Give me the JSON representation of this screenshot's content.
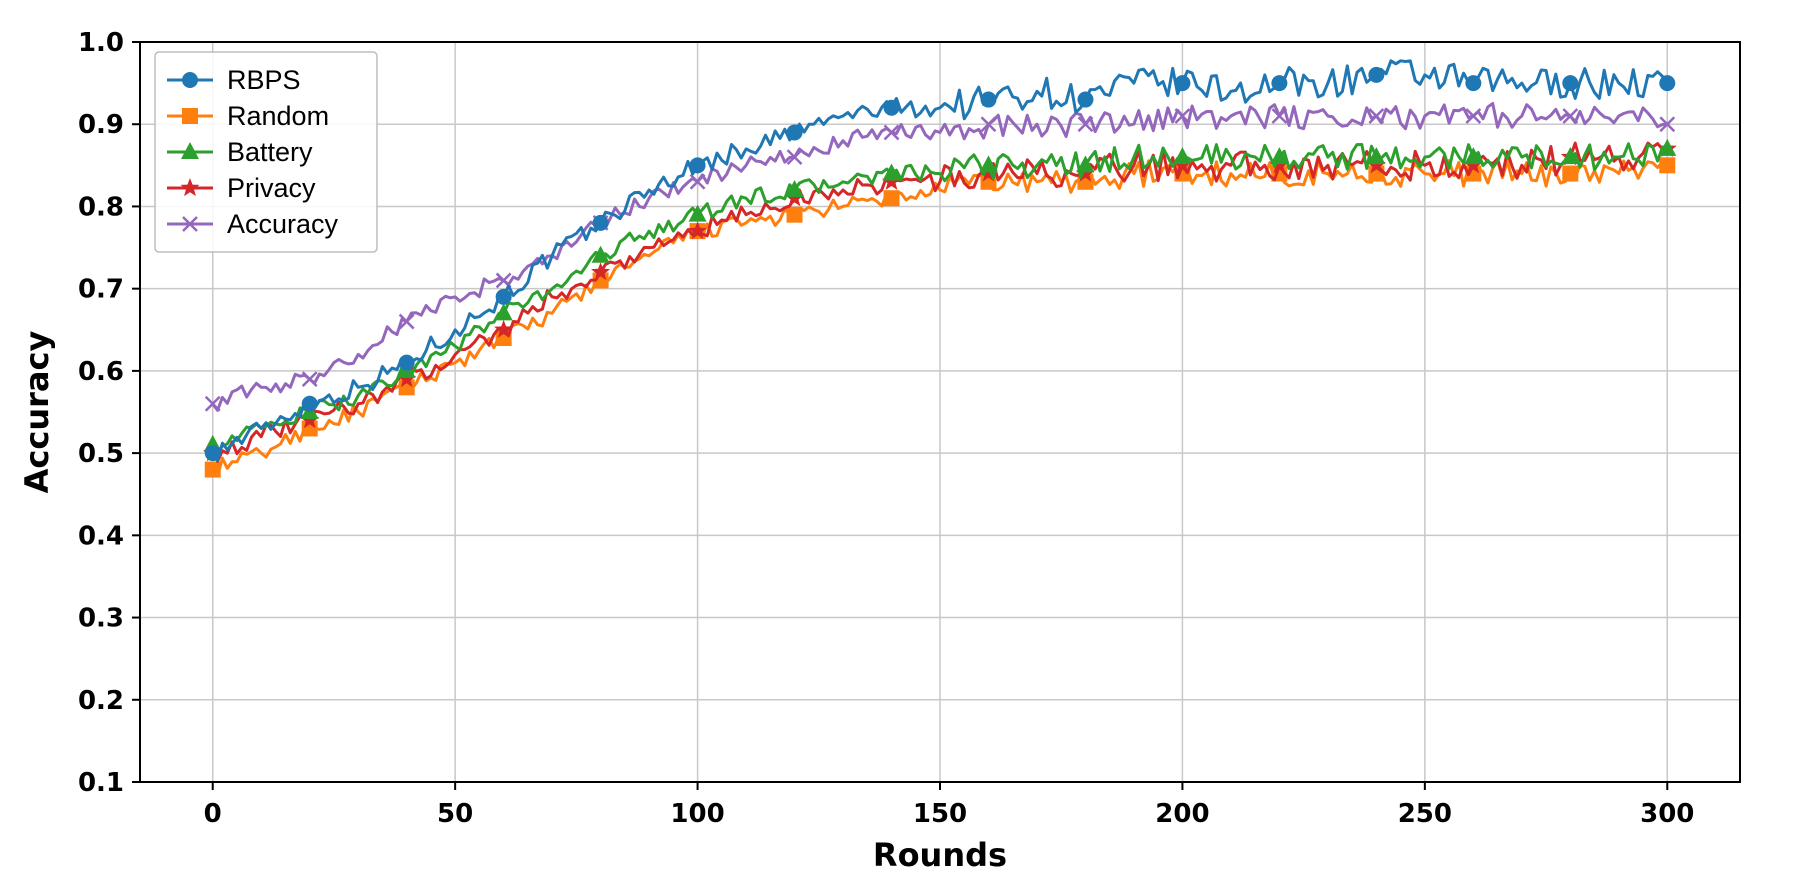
{
  "chart_data": {
    "type": "line",
    "title": "",
    "xlabel": "Rounds",
    "ylabel": "Accuracy",
    "xlim": [
      -15,
      315
    ],
    "ylim": [
      0.1,
      1.0
    ],
    "xticks": [
      0,
      50,
      100,
      150,
      200,
      250,
      300
    ],
    "yticks": [
      0.1,
      0.2,
      0.3,
      0.4,
      0.5,
      0.6,
      0.7,
      0.8,
      0.9,
      1.0
    ],
    "ytick_labels": [
      "0.1",
      "0.2",
      "0.3",
      "0.4",
      "0.5",
      "0.6",
      "0.7",
      "0.8",
      "0.9",
      "1.0"
    ],
    "grid": true,
    "legend_position": "top-left",
    "x": [
      0,
      10,
      20,
      30,
      40,
      50,
      60,
      70,
      80,
      90,
      100,
      110,
      120,
      130,
      140,
      150,
      160,
      170,
      180,
      190,
      200,
      210,
      220,
      230,
      240,
      250,
      260,
      270,
      280,
      290,
      300
    ],
    "series": [
      {
        "name": "RBPS",
        "color": "#1f77b4",
        "marker": "circle",
        "values": [
          0.5,
          0.53,
          0.56,
          0.58,
          0.61,
          0.65,
          0.69,
          0.74,
          0.78,
          0.82,
          0.85,
          0.87,
          0.89,
          0.91,
          0.92,
          0.92,
          0.93,
          0.94,
          0.93,
          0.95,
          0.95,
          0.94,
          0.95,
          0.95,
          0.96,
          0.96,
          0.95,
          0.95,
          0.95,
          0.95,
          0.95
        ],
        "noise": 0.012
      },
      {
        "name": "Random",
        "color": "#ff7f0e",
        "marker": "square",
        "values": [
          0.48,
          0.5,
          0.53,
          0.55,
          0.58,
          0.61,
          0.64,
          0.67,
          0.71,
          0.74,
          0.77,
          0.78,
          0.79,
          0.8,
          0.81,
          0.82,
          0.83,
          0.83,
          0.83,
          0.84,
          0.84,
          0.84,
          0.84,
          0.84,
          0.84,
          0.84,
          0.84,
          0.84,
          0.84,
          0.84,
          0.85
        ],
        "noise": 0.01
      },
      {
        "name": "Battery",
        "color": "#2ca02c",
        "marker": "triangle",
        "values": [
          0.51,
          0.53,
          0.55,
          0.57,
          0.6,
          0.63,
          0.67,
          0.7,
          0.74,
          0.77,
          0.79,
          0.81,
          0.82,
          0.83,
          0.84,
          0.84,
          0.85,
          0.85,
          0.85,
          0.86,
          0.86,
          0.86,
          0.86,
          0.86,
          0.86,
          0.86,
          0.86,
          0.86,
          0.86,
          0.86,
          0.87
        ],
        "noise": 0.01
      },
      {
        "name": "Privacy",
        "color": "#d62728",
        "marker": "star",
        "values": [
          0.5,
          0.52,
          0.54,
          0.56,
          0.59,
          0.62,
          0.65,
          0.69,
          0.72,
          0.75,
          0.77,
          0.79,
          0.81,
          0.82,
          0.83,
          0.83,
          0.84,
          0.84,
          0.84,
          0.85,
          0.85,
          0.85,
          0.85,
          0.85,
          0.85,
          0.85,
          0.85,
          0.85,
          0.86,
          0.86,
          0.87
        ],
        "noise": 0.012
      },
      {
        "name": "Accuracy",
        "color": "#9467bd",
        "marker": "x",
        "values": [
          0.56,
          0.58,
          0.59,
          0.62,
          0.66,
          0.69,
          0.71,
          0.74,
          0.78,
          0.81,
          0.83,
          0.85,
          0.86,
          0.88,
          0.89,
          0.89,
          0.9,
          0.9,
          0.9,
          0.9,
          0.91,
          0.91,
          0.91,
          0.91,
          0.91,
          0.91,
          0.91,
          0.91,
          0.91,
          0.91,
          0.9
        ],
        "noise": 0.01
      }
    ]
  }
}
